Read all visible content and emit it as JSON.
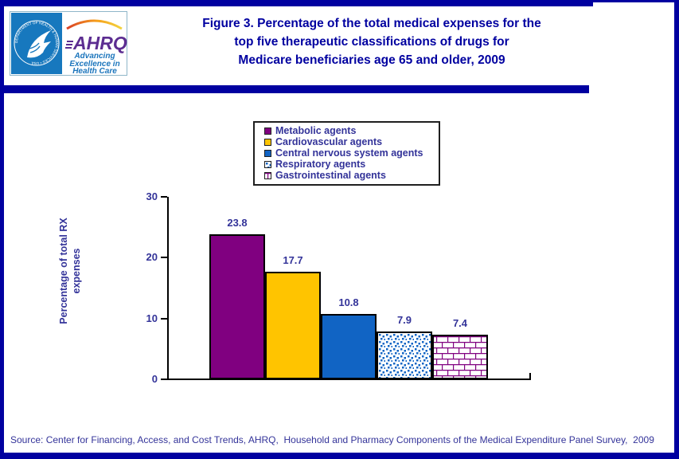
{
  "header": {
    "logo": {
      "acronym": "AHRQ",
      "tagline_lines": [
        "Advancing",
        "Excellence in",
        "Health Care"
      ],
      "seal_text": "DEPARTMENT OF HEALTH & HUMAN SERVICES • USA"
    },
    "title_lines": [
      "Figure 3. Percentage of the total medical expenses for the",
      "top five therapeutic classifications of drugs for",
      "Medicare beneficiaries age 65 and older, 2009"
    ]
  },
  "chart_data": {
    "type": "bar",
    "title": "Percentage of the total medical expenses for the top five therapeutic classifications of drugs for Medicare beneficiaries age 65 and older, 2009",
    "categories": [
      "Metabolic agents",
      "Cardiovascular agents",
      "Central nervous system agents",
      "Respiratory agents",
      "Gastrointestinal agents"
    ],
    "values": [
      23.8,
      17.7,
      10.8,
      7.9,
      7.4
    ],
    "xlabel": "",
    "ylabel": "Percentage of total RX expenses",
    "ylabel_lines": [
      "Percentage of total RX",
      "expenses"
    ],
    "ylim": [
      0,
      30
    ],
    "yticks": [
      0,
      10,
      20,
      30
    ],
    "grid": false,
    "legend_position": "top-center",
    "bar_styles": [
      {
        "pattern": "solid",
        "color": "#800080"
      },
      {
        "pattern": "solid",
        "color": "#FFC400"
      },
      {
        "pattern": "solid",
        "color": "#1164C4"
      },
      {
        "pattern": "dots",
        "color": "#1164C4"
      },
      {
        "pattern": "bricks",
        "color": "#800080"
      }
    ]
  },
  "footer": {
    "source": "Source: Center for Financing, Access, and Cost Trends, AHRQ,  Household and Pharmacy Components of the Medical Expenditure Panel Survey,  2009"
  },
  "colors": {
    "frame_navy": "#0000A0",
    "title_text": "#0000A0",
    "axis_text": "#333399",
    "bar_border": "#000000",
    "logo_blue": "#1778BE",
    "logo_purple": "#5C2D91"
  }
}
